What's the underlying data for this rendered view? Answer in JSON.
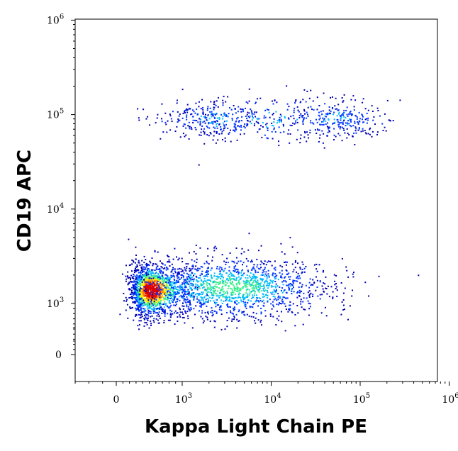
{
  "chart_data": {
    "type": "scatter",
    "title": "",
    "xlabel": "Kappa Light Chain PE",
    "ylabel": "CD19 APC",
    "x_scale": "biexponential",
    "y_scale": "biexponential",
    "xlim": [
      -300,
      1000000
    ],
    "ylim": [
      -200,
      1000000
    ],
    "grid": false,
    "colormap": [
      "#0000b4",
      "#0033ff",
      "#00bbff",
      "#33ee88",
      "#ffee00",
      "#ff7700",
      "#dd0000"
    ],
    "x_ticks": [
      {
        "value": 0,
        "base": "0",
        "exp": ""
      },
      {
        "value": 1000,
        "base": "10",
        "exp": "3"
      },
      {
        "value": 10000,
        "base": "10",
        "exp": "4"
      },
      {
        "value": 100000,
        "base": "10",
        "exp": "5"
      },
      {
        "value": 1000000,
        "base": "10",
        "exp": "6"
      }
    ],
    "y_ticks": [
      {
        "value": 0,
        "base": "0",
        "exp": ""
      },
      {
        "value": 1000,
        "base": "10",
        "exp": "3"
      },
      {
        "value": 10000,
        "base": "10",
        "exp": "4"
      },
      {
        "value": 100000,
        "base": "10",
        "exp": "5"
      },
      {
        "value": 1000000,
        "base": "10",
        "exp": "6"
      }
    ],
    "populations": [
      {
        "center": [
          520,
          1400
        ],
        "spread": [
          0.17,
          0.13
        ],
        "density": "very-high",
        "count": 1500
      },
      {
        "center": [
          3500,
          1500
        ],
        "spread": [
          0.55,
          0.16
        ],
        "density": "medium",
        "count": 1500
      },
      {
        "center": [
          2200,
          90000
        ],
        "spread": [
          0.28,
          0.1
        ],
        "density": "low",
        "count": 260
      },
      {
        "center": [
          55000,
          90000
        ],
        "spread": [
          0.28,
          0.1
        ],
        "density": "low",
        "count": 260
      },
      {
        "center": [
          10000,
          90000
        ],
        "spread": [
          0.5,
          0.13
        ],
        "density": "low",
        "count": 200
      }
    ]
  }
}
